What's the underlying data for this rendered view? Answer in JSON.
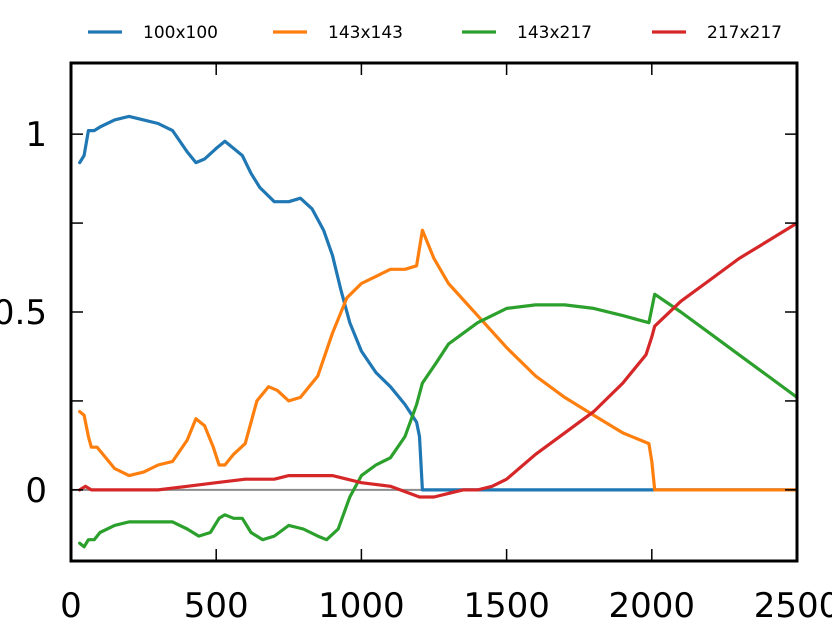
{
  "chart_data": {
    "type": "line",
    "title": "",
    "xlabel": "",
    "ylabel": "",
    "xlim": [
      0,
      2500
    ],
    "ylim": [
      -0.2,
      1.2
    ],
    "xticks": [
      0,
      500,
      1000,
      1500,
      2000,
      2500
    ],
    "xtick_labels": [
      "0",
      "500",
      "1000",
      "1500",
      "2000",
      "2500"
    ],
    "yticks": [
      0,
      0.5,
      1
    ],
    "ytick_labels": [
      "0",
      "0.5",
      "1"
    ],
    "grid": false,
    "legend_position": "top, outside plot, single row",
    "reference_line_y": 0,
    "series": [
      {
        "name": "100x100",
        "color": "#1f77b4",
        "points": [
          [
            30,
            0.92
          ],
          [
            45,
            0.94
          ],
          [
            60,
            1.01
          ],
          [
            80,
            1.01
          ],
          [
            100,
            1.02
          ],
          [
            150,
            1.04
          ],
          [
            200,
            1.05
          ],
          [
            250,
            1.04
          ],
          [
            300,
            1.03
          ],
          [
            350,
            1.01
          ],
          [
            400,
            0.95
          ],
          [
            430,
            0.92
          ],
          [
            460,
            0.93
          ],
          [
            500,
            0.96
          ],
          [
            530,
            0.98
          ],
          [
            560,
            0.96
          ],
          [
            590,
            0.94
          ],
          [
            620,
            0.89
          ],
          [
            650,
            0.85
          ],
          [
            700,
            0.81
          ],
          [
            750,
            0.81
          ],
          [
            790,
            0.82
          ],
          [
            830,
            0.79
          ],
          [
            870,
            0.73
          ],
          [
            900,
            0.66
          ],
          [
            930,
            0.56
          ],
          [
            960,
            0.47
          ],
          [
            1000,
            0.39
          ],
          [
            1050,
            0.33
          ],
          [
            1100,
            0.29
          ],
          [
            1150,
            0.24
          ],
          [
            1190,
            0.19
          ],
          [
            1200,
            0.15
          ],
          [
            1210,
            0.0
          ],
          [
            1300,
            0.0
          ],
          [
            1500,
            0.0
          ],
          [
            1800,
            0.0
          ],
          [
            2000,
            0.0
          ],
          [
            2200,
            0.0
          ],
          [
            2500,
            0.0
          ]
        ]
      },
      {
        "name": "143x143",
        "color": "#ff7f0e",
        "points": [
          [
            30,
            0.22
          ],
          [
            45,
            0.21
          ],
          [
            60,
            0.15
          ],
          [
            70,
            0.12
          ],
          [
            90,
            0.12
          ],
          [
            110,
            0.1
          ],
          [
            150,
            0.06
          ],
          [
            200,
            0.04
          ],
          [
            250,
            0.05
          ],
          [
            300,
            0.07
          ],
          [
            350,
            0.08
          ],
          [
            400,
            0.14
          ],
          [
            430,
            0.2
          ],
          [
            460,
            0.18
          ],
          [
            490,
            0.12
          ],
          [
            510,
            0.07
          ],
          [
            530,
            0.07
          ],
          [
            560,
            0.1
          ],
          [
            600,
            0.13
          ],
          [
            640,
            0.25
          ],
          [
            680,
            0.29
          ],
          [
            710,
            0.28
          ],
          [
            750,
            0.25
          ],
          [
            790,
            0.26
          ],
          [
            850,
            0.32
          ],
          [
            900,
            0.44
          ],
          [
            950,
            0.54
          ],
          [
            1000,
            0.58
          ],
          [
            1050,
            0.6
          ],
          [
            1100,
            0.62
          ],
          [
            1150,
            0.62
          ],
          [
            1190,
            0.63
          ],
          [
            1210,
            0.73
          ],
          [
            1250,
            0.65
          ],
          [
            1300,
            0.58
          ],
          [
            1400,
            0.49
          ],
          [
            1500,
            0.4
          ],
          [
            1600,
            0.32
          ],
          [
            1700,
            0.26
          ],
          [
            1800,
            0.21
          ],
          [
            1900,
            0.16
          ],
          [
            1990,
            0.13
          ],
          [
            2000,
            0.08
          ],
          [
            2010,
            0.0
          ],
          [
            2200,
            0.0
          ],
          [
            2500,
            0.0
          ]
        ]
      },
      {
        "name": "143x217",
        "color": "#2ca02c",
        "points": [
          [
            30,
            -0.15
          ],
          [
            45,
            -0.16
          ],
          [
            60,
            -0.14
          ],
          [
            80,
            -0.14
          ],
          [
            100,
            -0.12
          ],
          [
            150,
            -0.1
          ],
          [
            200,
            -0.09
          ],
          [
            250,
            -0.09
          ],
          [
            350,
            -0.09
          ],
          [
            400,
            -0.11
          ],
          [
            440,
            -0.13
          ],
          [
            480,
            -0.12
          ],
          [
            510,
            -0.08
          ],
          [
            530,
            -0.07
          ],
          [
            560,
            -0.08
          ],
          [
            590,
            -0.08
          ],
          [
            620,
            -0.12
          ],
          [
            660,
            -0.14
          ],
          [
            700,
            -0.13
          ],
          [
            750,
            -0.1
          ],
          [
            800,
            -0.11
          ],
          [
            850,
            -0.13
          ],
          [
            880,
            -0.14
          ],
          [
            920,
            -0.11
          ],
          [
            960,
            -0.02
          ],
          [
            1000,
            0.04
          ],
          [
            1050,
            0.07
          ],
          [
            1100,
            0.09
          ],
          [
            1150,
            0.15
          ],
          [
            1190,
            0.24
          ],
          [
            1210,
            0.3
          ],
          [
            1260,
            0.36
          ],
          [
            1300,
            0.41
          ],
          [
            1400,
            0.47
          ],
          [
            1500,
            0.51
          ],
          [
            1600,
            0.52
          ],
          [
            1700,
            0.52
          ],
          [
            1800,
            0.51
          ],
          [
            1900,
            0.49
          ],
          [
            1990,
            0.47
          ],
          [
            2010,
            0.55
          ],
          [
            2100,
            0.5
          ],
          [
            2200,
            0.44
          ],
          [
            2300,
            0.38
          ],
          [
            2400,
            0.32
          ],
          [
            2500,
            0.26
          ]
        ]
      },
      {
        "name": "217x217",
        "color": "#d62728",
        "points": [
          [
            30,
            0.0
          ],
          [
            50,
            0.01
          ],
          [
            70,
            0.0
          ],
          [
            150,
            0.0
          ],
          [
            200,
            0.0
          ],
          [
            300,
            0.0
          ],
          [
            400,
            0.01
          ],
          [
            500,
            0.02
          ],
          [
            600,
            0.03
          ],
          [
            700,
            0.03
          ],
          [
            750,
            0.04
          ],
          [
            900,
            0.04
          ],
          [
            1000,
            0.02
          ],
          [
            1100,
            0.01
          ],
          [
            1200,
            -0.02
          ],
          [
            1250,
            -0.02
          ],
          [
            1300,
            -0.01
          ],
          [
            1350,
            0.0
          ],
          [
            1400,
            0.0
          ],
          [
            1450,
            0.01
          ],
          [
            1500,
            0.03
          ],
          [
            1600,
            0.1
          ],
          [
            1700,
            0.16
          ],
          [
            1800,
            0.22
          ],
          [
            1900,
            0.3
          ],
          [
            1980,
            0.38
          ],
          [
            2000,
            0.43
          ],
          [
            2010,
            0.46
          ],
          [
            2100,
            0.53
          ],
          [
            2200,
            0.59
          ],
          [
            2300,
            0.65
          ],
          [
            2400,
            0.7
          ],
          [
            2500,
            0.75
          ]
        ]
      }
    ]
  }
}
